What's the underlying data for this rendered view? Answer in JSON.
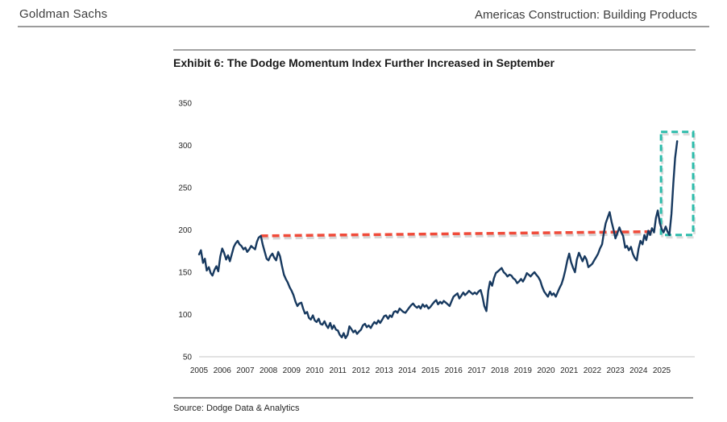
{
  "header": {
    "brand": "Goldman Sachs",
    "report_title": "Americas Construction: Building Products"
  },
  "exhibit": {
    "title": "Exhibit 6: The Dodge Momentum Index Further Increased in September"
  },
  "footer": {
    "source": "Source: Dodge Data & Analytics"
  },
  "colors": {
    "line": "#17395f",
    "baseline_dash": "#f04b3a",
    "highlight_box": "#2cbcab",
    "shadow": "#9a9a9a",
    "axis_line": "#d9d9d9",
    "tick_text": "#262626"
  },
  "chart_data": {
    "type": "line",
    "title": "Exhibit 6: The Dodge Momentum Index Further Increased in September",
    "xlabel": "",
    "ylabel": "",
    "ylim": [
      50,
      350
    ],
    "yticks": [
      350,
      300,
      250,
      200,
      150,
      100,
      50
    ],
    "xticks": [
      2005,
      2006,
      2007,
      2008,
      2009,
      2010,
      2011,
      2012,
      2013,
      2014,
      2015,
      2016,
      2017,
      2018,
      2019,
      2020,
      2021,
      2022,
      2023,
      2024,
      2025
    ],
    "grid": false,
    "legend": "none",
    "series": [
      {
        "name": "Dodge Momentum Index",
        "points": [
          [
            2005.0,
            171
          ],
          [
            2005.08,
            176
          ],
          [
            2005.17,
            161
          ],
          [
            2005.25,
            166
          ],
          [
            2005.33,
            152
          ],
          [
            2005.42,
            156
          ],
          [
            2005.5,
            149
          ],
          [
            2005.58,
            146
          ],
          [
            2005.67,
            153
          ],
          [
            2005.75,
            157
          ],
          [
            2005.83,
            151
          ],
          [
            2005.92,
            169
          ],
          [
            2006.0,
            178
          ],
          [
            2006.08,
            173
          ],
          [
            2006.17,
            165
          ],
          [
            2006.25,
            170
          ],
          [
            2006.33,
            163
          ],
          [
            2006.42,
            172
          ],
          [
            2006.5,
            180
          ],
          [
            2006.58,
            184
          ],
          [
            2006.67,
            187
          ],
          [
            2006.75,
            183
          ],
          [
            2006.83,
            181
          ],
          [
            2006.92,
            177
          ],
          [
            2007.0,
            179
          ],
          [
            2007.08,
            174
          ],
          [
            2007.17,
            177
          ],
          [
            2007.25,
            181
          ],
          [
            2007.33,
            179
          ],
          [
            2007.42,
            177
          ],
          [
            2007.5,
            186
          ],
          [
            2007.58,
            191
          ],
          [
            2007.67,
            193
          ],
          [
            2007.75,
            183
          ],
          [
            2007.83,
            175
          ],
          [
            2007.92,
            166
          ],
          [
            2008.0,
            164
          ],
          [
            2008.08,
            169
          ],
          [
            2008.17,
            172
          ],
          [
            2008.25,
            167
          ],
          [
            2008.33,
            164
          ],
          [
            2008.42,
            174
          ],
          [
            2008.5,
            169
          ],
          [
            2008.58,
            158
          ],
          [
            2008.67,
            147
          ],
          [
            2008.75,
            142
          ],
          [
            2008.83,
            138
          ],
          [
            2008.92,
            132
          ],
          [
            2009.0,
            128
          ],
          [
            2009.08,
            123
          ],
          [
            2009.17,
            115
          ],
          [
            2009.25,
            110
          ],
          [
            2009.33,
            113
          ],
          [
            2009.42,
            114
          ],
          [
            2009.5,
            107
          ],
          [
            2009.58,
            101
          ],
          [
            2009.67,
            103
          ],
          [
            2009.75,
            96
          ],
          [
            2009.83,
            94
          ],
          [
            2009.92,
            99
          ],
          [
            2010.0,
            93
          ],
          [
            2010.08,
            91
          ],
          [
            2010.17,
            95
          ],
          [
            2010.25,
            89
          ],
          [
            2010.33,
            88
          ],
          [
            2010.42,
            92
          ],
          [
            2010.5,
            87
          ],
          [
            2010.58,
            84
          ],
          [
            2010.67,
            90
          ],
          [
            2010.75,
            83
          ],
          [
            2010.83,
            87
          ],
          [
            2010.92,
            82
          ],
          [
            2011.0,
            81
          ],
          [
            2011.08,
            76
          ],
          [
            2011.17,
            73
          ],
          [
            2011.25,
            78
          ],
          [
            2011.33,
            72
          ],
          [
            2011.42,
            76
          ],
          [
            2011.5,
            86
          ],
          [
            2011.58,
            83
          ],
          [
            2011.67,
            79
          ],
          [
            2011.75,
            81
          ],
          [
            2011.83,
            77
          ],
          [
            2011.92,
            80
          ],
          [
            2012.0,
            82
          ],
          [
            2012.08,
            87
          ],
          [
            2012.17,
            89
          ],
          [
            2012.25,
            85
          ],
          [
            2012.33,
            87
          ],
          [
            2012.42,
            84
          ],
          [
            2012.5,
            88
          ],
          [
            2012.58,
            91
          ],
          [
            2012.67,
            89
          ],
          [
            2012.75,
            93
          ],
          [
            2012.83,
            90
          ],
          [
            2012.92,
            94
          ],
          [
            2013.0,
            98
          ],
          [
            2013.08,
            99
          ],
          [
            2013.17,
            95
          ],
          [
            2013.25,
            99
          ],
          [
            2013.33,
            97
          ],
          [
            2013.42,
            103
          ],
          [
            2013.5,
            104
          ],
          [
            2013.58,
            102
          ],
          [
            2013.67,
            107
          ],
          [
            2013.75,
            105
          ],
          [
            2013.83,
            103
          ],
          [
            2013.92,
            102
          ],
          [
            2014.0,
            105
          ],
          [
            2014.08,
            108
          ],
          [
            2014.17,
            111
          ],
          [
            2014.25,
            113
          ],
          [
            2014.33,
            110
          ],
          [
            2014.42,
            108
          ],
          [
            2014.5,
            110
          ],
          [
            2014.58,
            107
          ],
          [
            2014.67,
            112
          ],
          [
            2014.75,
            109
          ],
          [
            2014.83,
            111
          ],
          [
            2014.92,
            107
          ],
          [
            2015.0,
            109
          ],
          [
            2015.08,
            112
          ],
          [
            2015.17,
            115
          ],
          [
            2015.25,
            117
          ],
          [
            2015.33,
            112
          ],
          [
            2015.42,
            115
          ],
          [
            2015.5,
            113
          ],
          [
            2015.58,
            116
          ],
          [
            2015.67,
            114
          ],
          [
            2015.75,
            112
          ],
          [
            2015.83,
            110
          ],
          [
            2015.92,
            116
          ],
          [
            2016.0,
            121
          ],
          [
            2016.08,
            123
          ],
          [
            2016.17,
            125
          ],
          [
            2016.25,
            119
          ],
          [
            2016.33,
            122
          ],
          [
            2016.42,
            126
          ],
          [
            2016.5,
            123
          ],
          [
            2016.58,
            125
          ],
          [
            2016.67,
            128
          ],
          [
            2016.75,
            126
          ],
          [
            2016.83,
            124
          ],
          [
            2016.92,
            126
          ],
          [
            2017.0,
            124
          ],
          [
            2017.08,
            127
          ],
          [
            2017.17,
            129
          ],
          [
            2017.25,
            121
          ],
          [
            2017.33,
            110
          ],
          [
            2017.42,
            104
          ],
          [
            2017.5,
            128
          ],
          [
            2017.58,
            139
          ],
          [
            2017.67,
            134
          ],
          [
            2017.75,
            143
          ],
          [
            2017.83,
            149
          ],
          [
            2017.92,
            151
          ],
          [
            2018.0,
            153
          ],
          [
            2018.08,
            155
          ],
          [
            2018.17,
            150
          ],
          [
            2018.25,
            148
          ],
          [
            2018.33,
            145
          ],
          [
            2018.42,
            147
          ],
          [
            2018.5,
            146
          ],
          [
            2018.58,
            143
          ],
          [
            2018.67,
            141
          ],
          [
            2018.75,
            137
          ],
          [
            2018.83,
            139
          ],
          [
            2018.92,
            142
          ],
          [
            2019.0,
            139
          ],
          [
            2019.08,
            143
          ],
          [
            2019.17,
            149
          ],
          [
            2019.25,
            147
          ],
          [
            2019.33,
            145
          ],
          [
            2019.42,
            148
          ],
          [
            2019.5,
            150
          ],
          [
            2019.58,
            147
          ],
          [
            2019.67,
            144
          ],
          [
            2019.75,
            140
          ],
          [
            2019.83,
            133
          ],
          [
            2019.92,
            127
          ],
          [
            2020.0,
            124
          ],
          [
            2020.08,
            121
          ],
          [
            2020.17,
            127
          ],
          [
            2020.25,
            123
          ],
          [
            2020.33,
            125
          ],
          [
            2020.42,
            121
          ],
          [
            2020.5,
            126
          ],
          [
            2020.58,
            131
          ],
          [
            2020.67,
            136
          ],
          [
            2020.75,
            143
          ],
          [
            2020.83,
            152
          ],
          [
            2020.92,
            164
          ],
          [
            2021.0,
            172
          ],
          [
            2021.08,
            162
          ],
          [
            2021.17,
            155
          ],
          [
            2021.25,
            150
          ],
          [
            2021.33,
            165
          ],
          [
            2021.42,
            173
          ],
          [
            2021.5,
            168
          ],
          [
            2021.58,
            163
          ],
          [
            2021.67,
            169
          ],
          [
            2021.75,
            165
          ],
          [
            2021.83,
            156
          ],
          [
            2021.92,
            158
          ],
          [
            2022.0,
            160
          ],
          [
            2022.08,
            164
          ],
          [
            2022.17,
            168
          ],
          [
            2022.25,
            172
          ],
          [
            2022.33,
            178
          ],
          [
            2022.42,
            183
          ],
          [
            2022.5,
            197
          ],
          [
            2022.58,
            208
          ],
          [
            2022.67,
            215
          ],
          [
            2022.75,
            221
          ],
          [
            2022.83,
            210
          ],
          [
            2022.92,
            200
          ],
          [
            2023.0,
            190
          ],
          [
            2023.08,
            196
          ],
          [
            2023.17,
            203
          ],
          [
            2023.25,
            197
          ],
          [
            2023.33,
            193
          ],
          [
            2023.42,
            179
          ],
          [
            2023.5,
            181
          ],
          [
            2023.58,
            176
          ],
          [
            2023.67,
            180
          ],
          [
            2023.75,
            172
          ],
          [
            2023.83,
            167
          ],
          [
            2023.92,
            164
          ],
          [
            2024.0,
            178
          ],
          [
            2024.08,
            187
          ],
          [
            2024.17,
            183
          ],
          [
            2024.25,
            194
          ],
          [
            2024.33,
            188
          ],
          [
            2024.42,
            199
          ],
          [
            2024.5,
            194
          ],
          [
            2024.58,
            202
          ],
          [
            2024.67,
            197
          ],
          [
            2024.75,
            214
          ],
          [
            2024.83,
            223
          ],
          [
            2024.92,
            208
          ],
          [
            2025.0,
            201
          ],
          [
            2025.08,
            197
          ],
          [
            2025.17,
            204
          ],
          [
            2025.25,
            198
          ],
          [
            2025.33,
            194
          ],
          [
            2025.42,
            219
          ],
          [
            2025.5,
            255
          ],
          [
            2025.58,
            285
          ],
          [
            2025.67,
            305
          ]
        ]
      }
    ],
    "annotations": {
      "baseline": {
        "label": "pre-recession peak reference line",
        "style": "dashed",
        "color": "#f04b3a",
        "from": [
          2007.67,
          193
        ],
        "to": [
          2024.72,
          198
        ]
      },
      "highlight_box": {
        "label": "september surge highlight",
        "style": "dashed",
        "color": "#2cbcab",
        "x_range": [
          2024.97,
          2026.36
        ],
        "y_range": [
          194,
          316
        ]
      }
    }
  }
}
